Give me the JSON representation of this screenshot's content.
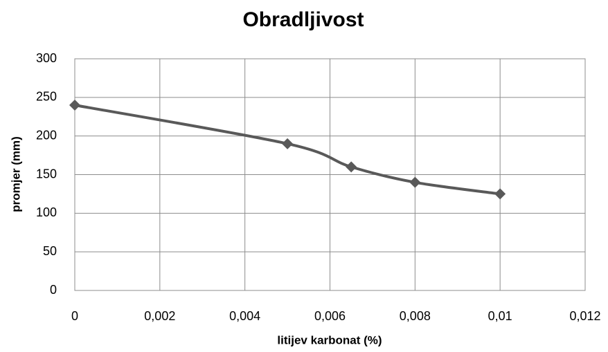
{
  "chart_data": {
    "type": "line",
    "title": "Obradljivost",
    "x_label": "litijev karbonat (%)",
    "y_label": "promjer (mm)",
    "series": [
      {
        "name": "Obradljivost",
        "color": "#595959",
        "x": [
          0,
          0.005,
          0.0065,
          0.008,
          0.01
        ],
        "values": [
          240,
          190,
          160,
          140,
          125
        ]
      }
    ],
    "xlim": [
      0,
      0.012
    ],
    "xticks": [
      0,
      {
        "value": 0.002,
        "label": "0,002"
      },
      {
        "value": 0.004,
        "label": "0,004"
      },
      {
        "value": 0.006,
        "label": "0,006"
      },
      {
        "value": 0.008,
        "label": "0,008"
      },
      {
        "value": 0.01,
        "label": "0,01"
      },
      {
        "value": 0.012,
        "label": "0,012"
      }
    ],
    "ylim": [
      0,
      300
    ],
    "yticks": [
      0,
      50,
      100,
      150,
      200,
      250,
      300
    ],
    "grid": true,
    "smooth": true
  }
}
